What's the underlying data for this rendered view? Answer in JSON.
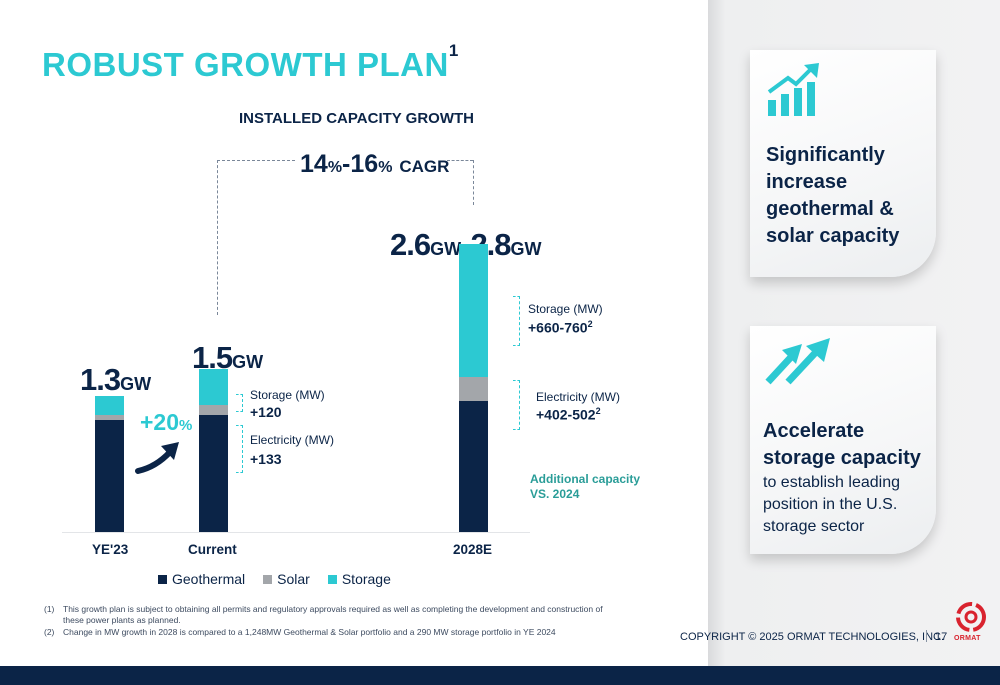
{
  "page": {
    "title": "ROBUST GROWTH PLAN",
    "title_sup": "1",
    "copyright": "COPYRIGHT © 2025 ORMAT TECHNOLOGIES, INC.",
    "page_number": "17",
    "logo_text": "ORMAT"
  },
  "chart_data": {
    "type": "bar",
    "stacked": true,
    "title": "INSTALLED CAPACITY GROWTH",
    "categories": [
      "YE'23",
      "Current",
      "2028E"
    ],
    "series": [
      {
        "name": "Geothermal",
        "color": "#0b2447",
        "values": [
          1.03,
          1.08,
          1.21
        ]
      },
      {
        "name": "Solar",
        "color": "#a3a6aa",
        "values": [
          0.05,
          0.09,
          0.22
        ]
      },
      {
        "name": "Storage",
        "color": "#2cc9d2",
        "values": [
          0.17,
          0.33,
          1.22
        ]
      }
    ],
    "totals": [
      {
        "value": "1.3",
        "unit": "GW"
      },
      {
        "value": "1.5",
        "unit": "GW"
      },
      {
        "value": "2.6",
        "unit": "GW",
        "value2": "2.8"
      }
    ],
    "ylim": [
      0,
      2.8
    ],
    "grid": false,
    "legend_position": "bottom",
    "cagr": {
      "low": "14",
      "high": "16",
      "unit": "%",
      "text": "CAGR"
    },
    "growth_label": {
      "value": "+20",
      "unit": "%"
    },
    "annotations": {
      "current_storage": {
        "label": "Storage (MW)",
        "value": "+120"
      },
      "current_electricity": {
        "label": "Electricity (MW)",
        "value": "+133"
      },
      "e2028_storage": {
        "label": "Storage (MW)",
        "value": "+660-760",
        "sup": "2"
      },
      "e2028_electricity": {
        "label": "Electricity (MW)",
        "value": "+402-502",
        "sup": "2"
      },
      "additional_line1": "Additional capacity",
      "additional_line2": "VS. 2024"
    }
  },
  "cards": [
    {
      "icon": "bar-chart-growth-icon",
      "heading": [
        "Significantly",
        "increase",
        "geothermal &",
        "solar capacity"
      ]
    },
    {
      "icon": "double-arrow-up-icon",
      "heading": [
        "Accelerate",
        "storage capacity"
      ],
      "text": [
        "to establish leading",
        "position in the U.S.",
        "storage sector"
      ]
    }
  ],
  "footnotes": [
    {
      "num": "(1)",
      "text": "This growth plan is subject to obtaining all permits and regulatory approvals required as well as completing the development and construction of these power plants as planned."
    },
    {
      "num": "(2)",
      "text": "Change in MW growth in 2028 is compared to a 1,248MW Geothermal & Solar portfolio and a 290 MW storage portfolio in YE 2024"
    }
  ]
}
